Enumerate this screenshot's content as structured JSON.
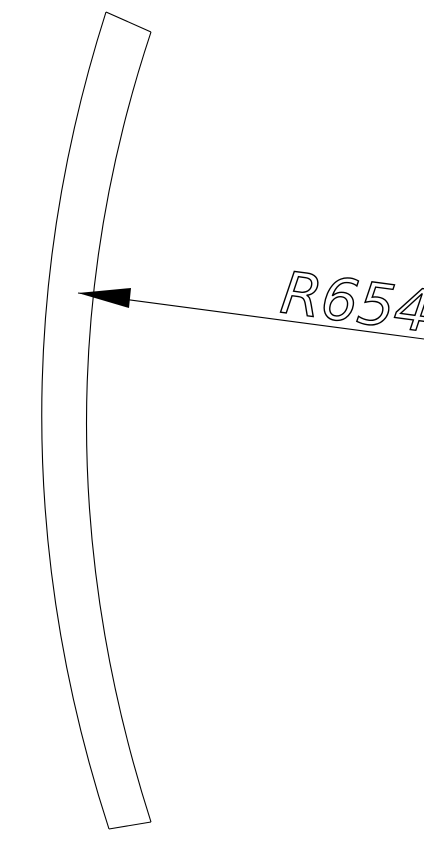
{
  "drawing": {
    "radius_label": "R654"
  }
}
